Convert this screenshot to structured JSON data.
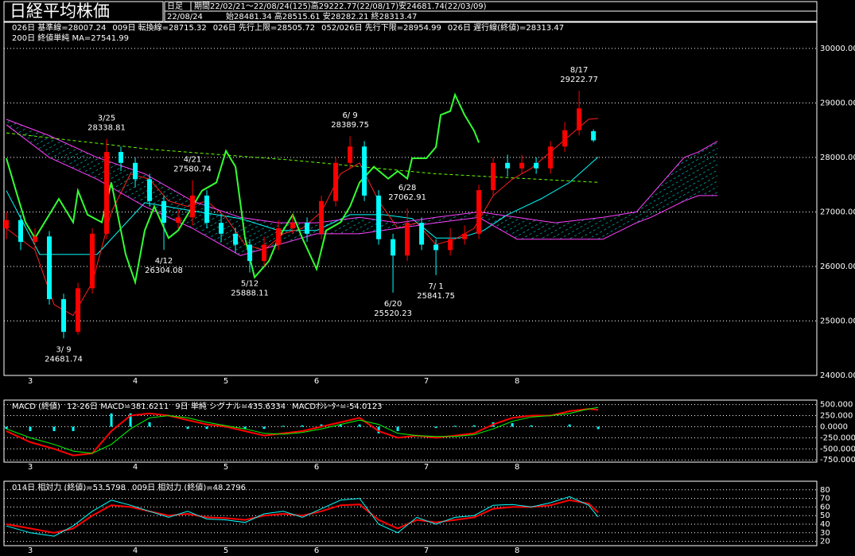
{
  "chart_data": [
    {
      "type": "candlestick",
      "title": "日経平均株価",
      "period_label": "日足",
      "period": "期間22/02/21～22/08/24(125)高29222.77(22/08/17)安24681.74(22/03/09)",
      "date": "22/08/24",
      "ohlc_text": "始28481.34 高28515.61 安28282.21 終28313.47",
      "xlim": [
        -0.5,
        169.8
      ],
      "xticks": [
        {
          "value": 5,
          "label": "3"
        },
        {
          "value": 27,
          "label": "4"
        },
        {
          "value": 46,
          "label": "5"
        },
        {
          "value": 65,
          "label": "6"
        },
        {
          "value": 88,
          "label": "7"
        },
        {
          "value": 107,
          "label": "8"
        }
      ],
      "ylim": [
        24000,
        30480
      ],
      "yticks": [
        {
          "value": 24000,
          "label": "24000.00"
        },
        {
          "value": 25000,
          "label": "25000.00"
        },
        {
          "value": 26000,
          "label": "26000.00"
        },
        {
          "value": 27000,
          "label": "27000.00"
        },
        {
          "value": 28000,
          "label": "28000.00"
        },
        {
          "value": 29000,
          "label": "29000.00"
        },
        {
          "value": 30000,
          "label": "30000.00"
        }
      ],
      "grid": true,
      "up_color": "#ff0000",
      "down_color": "#00ffff",
      "cloud_color": "#00ffff",
      "x": [
        0,
        3,
        6,
        9,
        12,
        15,
        18,
        21,
        24,
        27,
        30,
        33,
        36,
        39,
        42,
        45,
        48,
        51,
        54,
        57,
        60,
        63,
        66,
        69,
        72,
        75,
        78,
        81,
        84,
        87,
        90,
        93,
        96,
        99,
        102,
        105,
        108,
        111,
        114,
        117,
        120,
        123
      ],
      "open": [
        26700,
        26850,
        26450,
        26550,
        25400,
        24800,
        25600,
        26600,
        28100,
        27900,
        27600,
        27200,
        26800,
        26900,
        27300,
        26800,
        26600,
        26400,
        26100,
        26400,
        26700,
        26800,
        26600,
        27200,
        27900,
        28200,
        27300,
        26500,
        26200,
        26800,
        26400,
        26300,
        26500,
        26600,
        27400,
        27900,
        27800,
        27900,
        27800,
        28200,
        28500,
        28481.34
      ],
      "high": [
        27000,
        26950,
        26700,
        26650,
        25500,
        25700,
        26700,
        28338.81,
        28200,
        28000,
        27700,
        27300,
        27050,
        27580.74,
        27400,
        26950,
        26700,
        26500,
        26550,
        26850,
        26950,
        26900,
        27300,
        28000,
        28389.75,
        28300,
        27400,
        26600,
        27062.91,
        26900,
        26500,
        26700,
        26750,
        27500,
        28000,
        28050,
        28050,
        28000,
        28300,
        28650,
        29222.77,
        28515.61
      ],
      "low": [
        26500,
        26300,
        26300,
        25300,
        24681.74,
        24750,
        25500,
        26500,
        27750,
        27450,
        27100,
        26304.08,
        26700,
        26750,
        26700,
        26450,
        26250,
        25888.11,
        26000,
        26300,
        26600,
        26450,
        26500,
        27100,
        27800,
        27200,
        26400,
        25520.23,
        26100,
        26300,
        25841.75,
        26200,
        26400,
        26500,
        27300,
        27650,
        27700,
        27700,
        27700,
        28100,
        28400,
        28282.21
      ],
      "close": [
        26850,
        26450,
        26550,
        25400,
        24800,
        25600,
        26600,
        28100,
        27900,
        27600,
        27200,
        26800,
        26900,
        27300,
        26800,
        26600,
        26400,
        26100,
        26400,
        26700,
        26800,
        26600,
        27200,
        27900,
        28200,
        27300,
        26500,
        26200,
        26800,
        26400,
        26300,
        26500,
        26600,
        27400,
        27900,
        27800,
        27900,
        27800,
        28200,
        28500,
        28900,
        28313.47
      ],
      "series": [
        {
          "name": "026日 基準線=28007.24",
          "color": "#00ffff",
          "x": [
            0,
            7,
            19,
            29,
            39,
            49,
            57,
            65,
            72,
            79,
            85,
            90,
            95,
            100,
            105,
            112,
            118,
            124
          ],
          "values": [
            27390,
            26220,
            26220,
            27170,
            27020,
            26880,
            26660,
            26660,
            26950,
            26950,
            26880,
            26520,
            26520,
            26660,
            26950,
            27240,
            27540,
            28007.24
          ]
        },
        {
          "name": "009日 転換線=28715.32",
          "color": "#ff2020",
          "x": [
            0,
            6,
            10,
            14,
            18,
            22,
            26,
            30,
            34,
            38,
            42,
            46,
            50,
            54,
            58,
            62,
            66,
            70,
            74,
            78,
            82,
            86,
            90,
            94,
            98,
            102,
            106,
            110,
            114,
            118,
            122,
            124
          ],
          "values": [
            26700,
            26300,
            25300,
            25100,
            25700,
            27000,
            27700,
            27600,
            27200,
            27100,
            27200,
            26900,
            26400,
            26300,
            26600,
            26700,
            27000,
            27700,
            27900,
            27200,
            26700,
            26800,
            26400,
            26500,
            26700,
            27300,
            27600,
            27800,
            28100,
            28400,
            28700,
            28715.32
          ]
        },
        {
          "name": "026日 先行上限=28505.72",
          "color": "#ff40ff",
          "x": [
            0,
            9,
            19,
            29,
            39,
            49,
            57,
            65,
            74,
            82,
            90,
            99,
            107,
            115,
            125,
            132,
            135,
            142,
            145,
            149
          ],
          "values": [
            28700,
            28400,
            28000,
            27700,
            27200,
            26900,
            26800,
            26800,
            26900,
            26800,
            26900,
            27000,
            26900,
            26800,
            26900,
            27000,
            27300,
            28000,
            28100,
            28300
          ]
        },
        {
          "name": "052/026日 先行下限=28954.99",
          "color": "#ff40ff",
          "x": [
            0,
            9,
            19,
            29,
            39,
            49,
            57,
            65,
            74,
            82,
            90,
            99,
            107,
            115,
            125,
            132,
            135,
            142,
            145,
            149
          ],
          "values": [
            28600,
            28000,
            27600,
            27100,
            26700,
            26200,
            26400,
            26600,
            26600,
            26700,
            26800,
            26900,
            26500,
            26500,
            26500,
            26800,
            26900,
            27200,
            27300,
            27300
          ]
        },
        {
          "name": "026日 遅行線(終値)=28313.47",
          "color": "#33ff33",
          "line_width": 2,
          "x": [
            0,
            2,
            4,
            6,
            9,
            11,
            14,
            15,
            17,
            20,
            22,
            25,
            27,
            29,
            31,
            34,
            36,
            39,
            41,
            44,
            46,
            48,
            50,
            52,
            55,
            57,
            60,
            62,
            65,
            67,
            70,
            72,
            74,
            77,
            80,
            82,
            84,
            85,
            88,
            90,
            91,
            93,
            94,
            96,
            98,
            99
          ],
          "values": [
            27985,
            27390,
            26810,
            26520,
            26950,
            27240,
            26810,
            27390,
            26950,
            26810,
            27540,
            26220,
            25710,
            26660,
            27100,
            26520,
            26660,
            27100,
            27390,
            27540,
            28120,
            27830,
            26520,
            25800,
            26100,
            26520,
            26950,
            26520,
            25950,
            26660,
            26810,
            27100,
            27540,
            27830,
            27610,
            27750,
            27610,
            27985,
            27985,
            28190,
            28780,
            28850,
            29150,
            28780,
            28490,
            28270
          ]
        },
        {
          "name": "200日 終値単純 MA=27541.99",
          "color": "#66ff00",
          "dash": true,
          "x": [
            0,
            30,
            60,
            90,
            124
          ],
          "values": [
            28450,
            28150,
            27950,
            27700,
            27541.99
          ]
        }
      ],
      "annotations": [
        {
          "date": "3/ 9",
          "value": 24681.74
        },
        {
          "date": "3/25",
          "value": 28338.81
        },
        {
          "date": "4/12",
          "value": 26304.08
        },
        {
          "date": "4/21",
          "value": 27580.74
        },
        {
          "date": "5/12",
          "value": 25888.11
        },
        {
          "date": "6/ 9",
          "value": 28389.75
        },
        {
          "date": "6/20",
          "value": 25520.23
        },
        {
          "date": "6/28",
          "value": 27062.91
        },
        {
          "date": "7/ 1",
          "value": 25841.75
        },
        {
          "date": "8/17",
          "value": 29222.77
        }
      ]
    },
    {
      "type": "line",
      "title": "MACD (終値)",
      "xlim": [
        -0.5,
        169.8
      ],
      "xticks": [
        {
          "value": 5,
          "label": "3"
        },
        {
          "value": 27,
          "label": "4"
        },
        {
          "value": 46,
          "label": "5"
        },
        {
          "value": 65,
          "label": "6"
        },
        {
          "value": 88,
          "label": "7"
        },
        {
          "value": 107,
          "label": "8"
        }
      ],
      "ylim": [
        -800,
        600
      ],
      "yticks": [
        {
          "value": 500,
          "label": "500.000"
        },
        {
          "value": 250,
          "label": "250.000"
        },
        {
          "value": 0,
          "label": "0.0000"
        },
        {
          "value": -250,
          "label": "-250.000"
        },
        {
          "value": -500,
          "label": "-500.000"
        },
        {
          "value": -750,
          "label": "-750.000"
        }
      ],
      "grid": true,
      "x": [
        0,
        5,
        10,
        14,
        18,
        22,
        26,
        30,
        34,
        38,
        42,
        46,
        50,
        54,
        58,
        62,
        66,
        70,
        74,
        78,
        82,
        86,
        90,
        94,
        98,
        102,
        106,
        110,
        114,
        118,
        122,
        124
      ],
      "series": [
        {
          "name": "12-26日 MACD=381.6211",
          "color": "#ff0000",
          "line_width": 2,
          "values": [
            -100,
            -350,
            -500,
            -650,
            -600,
            -100,
            250,
            300,
            250,
            150,
            50,
            0,
            -100,
            -200,
            -150,
            -100,
            0,
            100,
            200,
            -100,
            -250,
            -200,
            -250,
            -200,
            -150,
            50,
            200,
            250,
            250,
            350,
            400,
            381.6211
          ]
        },
        {
          "name": "9日 単純 シグナル=435.6334",
          "color": "#00ff00",
          "values": [
            -50,
            -250,
            -400,
            -550,
            -600,
            -400,
            -50,
            200,
            250,
            200,
            100,
            20,
            -50,
            -150,
            -170,
            -130,
            -50,
            50,
            150,
            50,
            -150,
            -200,
            -220,
            -220,
            -180,
            -50,
            120,
            220,
            250,
            300,
            400,
            435.6334
          ]
        }
      ],
      "bars": {
        "name": "MACDｵｼﾚｰﾀｰ=-54.0123",
        "color": "#00ffff",
        "values": [
          -50,
          -100,
          -100,
          -100,
          0,
          300,
          300,
          100,
          0,
          -50,
          -50,
          -20,
          -50,
          -50,
          20,
          30,
          50,
          50,
          50,
          -150,
          -100,
          0,
          -30,
          20,
          30,
          100,
          80,
          30,
          0,
          50,
          0,
          -54.0123
        ]
      }
    },
    {
      "type": "line",
      "xlim": [
        -0.5,
        169.8
      ],
      "xticks": [
        {
          "value": 5,
          "label": "3"
        },
        {
          "value": 27,
          "label": "4"
        },
        {
          "value": 46,
          "label": "5"
        },
        {
          "value": 65,
          "label": "6"
        },
        {
          "value": 88,
          "label": "7"
        },
        {
          "value": 107,
          "label": "8"
        }
      ],
      "ylim": [
        15,
        90
      ],
      "yticks": [
        20,
        30,
        40,
        50,
        60,
        70,
        80
      ],
      "grid": true,
      "x": [
        0,
        5,
        10,
        14,
        18,
        22,
        26,
        30,
        34,
        38,
        42,
        46,
        50,
        54,
        58,
        62,
        66,
        70,
        74,
        78,
        82,
        86,
        90,
        94,
        98,
        102,
        106,
        110,
        114,
        118,
        122,
        124
      ],
      "series": [
        {
          "name": "014日 相対力 (終値)=53.5798",
          "color": "#ff0000",
          "line_width": 2,
          "values": [
            40,
            35,
            30,
            35,
            50,
            62,
            60,
            55,
            50,
            52,
            48,
            47,
            45,
            50,
            52,
            50,
            55,
            62,
            63,
            45,
            35,
            45,
            42,
            45,
            48,
            58,
            60,
            60,
            62,
            68,
            64,
            53.5798
          ]
        },
        {
          "name": "009日 相対力 (終値)=48.2796",
          "color": "#00ffff",
          "values": [
            38,
            30,
            26,
            38,
            55,
            68,
            62,
            55,
            48,
            55,
            46,
            45,
            42,
            52,
            55,
            48,
            58,
            68,
            70,
            40,
            30,
            48,
            40,
            48,
            50,
            62,
            63,
            60,
            65,
            72,
            62,
            48.2796
          ]
        }
      ]
    }
  ]
}
